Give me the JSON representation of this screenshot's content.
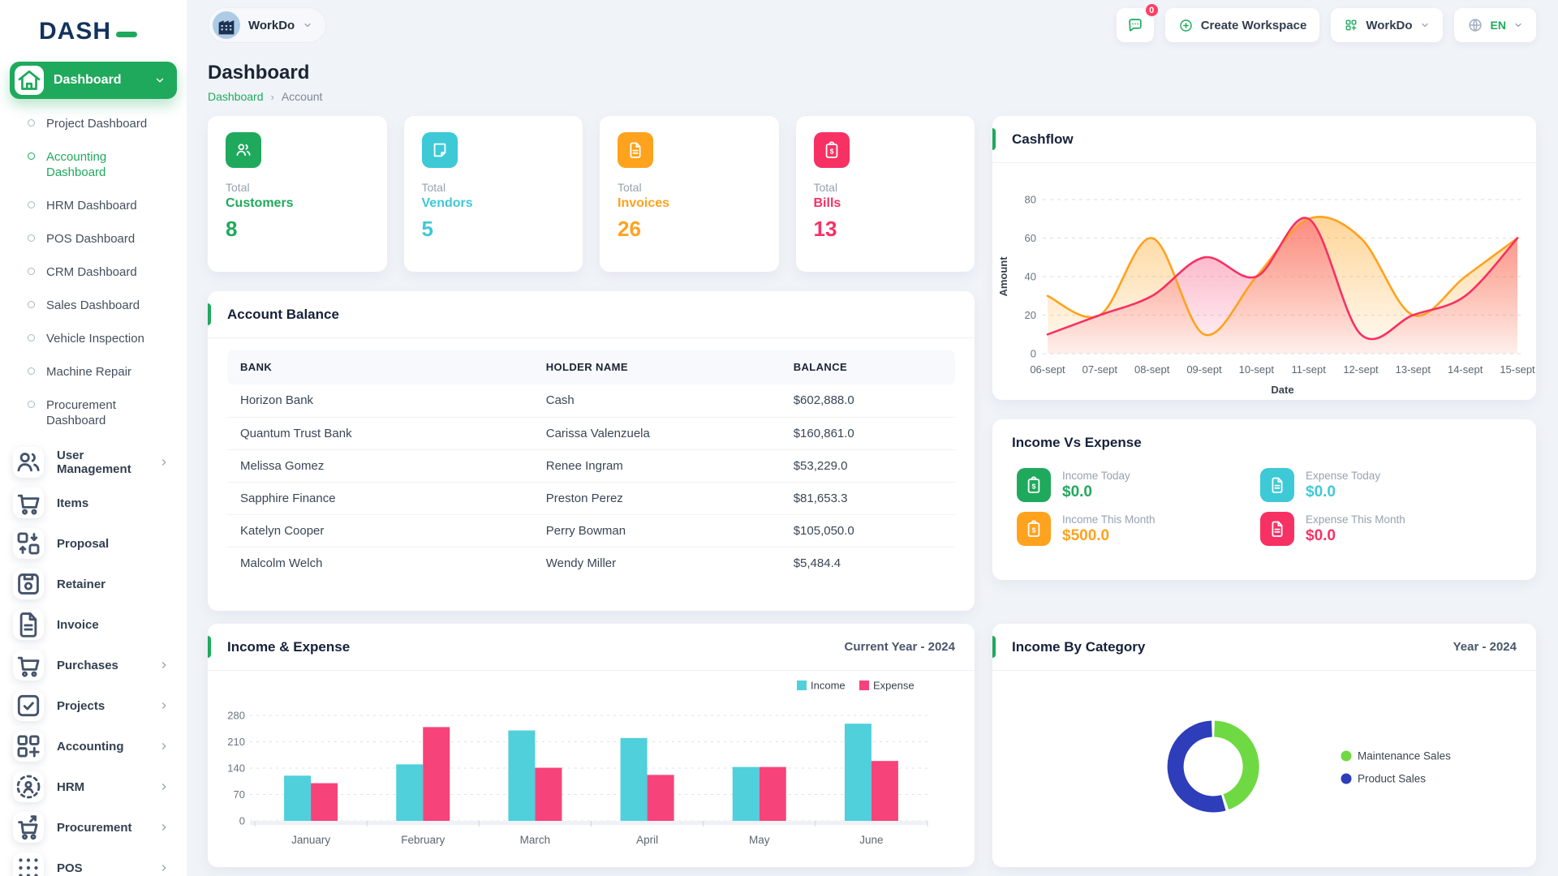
{
  "app": {
    "logo_text": "DASH"
  },
  "header": {
    "workspace_chip_label": "WorkDo",
    "notification_count": "0",
    "create_workspace_label": "Create Workspace",
    "workdo_label": "WorkDo",
    "language_label": "EN"
  },
  "page": {
    "title": "Dashboard",
    "breadcrumb_root": "Dashboard",
    "breadcrumb_sep": "›",
    "breadcrumb_current": "Account"
  },
  "sidebar": {
    "active_item": {
      "label": "Dashboard",
      "icon": "home-icon"
    },
    "dashboard_children": [
      {
        "label": "Project Dashboard",
        "active": false
      },
      {
        "label": "Accounting Dashboard",
        "active": true
      },
      {
        "label": "HRM Dashboard",
        "active": false
      },
      {
        "label": "POS Dashboard",
        "active": false
      },
      {
        "label": "CRM Dashboard",
        "active": false
      },
      {
        "label": "Sales Dashboard",
        "active": false
      },
      {
        "label": "Vehicle Inspection",
        "active": false
      },
      {
        "label": "Machine Repair",
        "active": false
      },
      {
        "label": "Procurement Dashboard",
        "active": false
      }
    ],
    "menu_items": [
      {
        "label": "User Management",
        "icon": "users-icon",
        "chevron": true
      },
      {
        "label": "Items",
        "icon": "cart-icon",
        "chevron": false
      },
      {
        "label": "Proposal",
        "icon": "workflow-icon",
        "chevron": false
      },
      {
        "label": "Retainer",
        "icon": "save-icon",
        "chevron": false
      },
      {
        "label": "Invoice",
        "icon": "file-text-icon",
        "chevron": false
      },
      {
        "label": "Purchases",
        "icon": "cart-icon",
        "chevron": true
      },
      {
        "label": "Projects",
        "icon": "check-square-icon",
        "chevron": true
      },
      {
        "label": "Accounting",
        "icon": "grid-plus-icon",
        "chevron": true
      },
      {
        "label": "HRM",
        "icon": "hrm-icon",
        "chevron": true
      },
      {
        "label": "Procurement",
        "icon": "procurement-cart-icon",
        "chevron": true
      },
      {
        "label": "POS",
        "icon": "pos-grid-icon",
        "chevron": true
      }
    ]
  },
  "stat_cards": [
    {
      "top": "Total",
      "name": "Customers",
      "value": "8",
      "color": "#1fa95c",
      "icon": "users-icon"
    },
    {
      "top": "Total",
      "name": "Vendors",
      "value": "5",
      "color": "#3ec9d6",
      "icon": "note-icon"
    },
    {
      "top": "Total",
      "name": "Invoices",
      "value": "26",
      "color": "#ffa21d",
      "icon": "file-text-icon"
    },
    {
      "top": "Total",
      "name": "Bills",
      "value": "13",
      "color": "#f73164",
      "icon": "clipboard-dollar-icon"
    }
  ],
  "account_balance": {
    "title": "Account Balance",
    "columns": [
      "BANK",
      "HOLDER NAME",
      "BALANCE"
    ],
    "rows": [
      [
        "Horizon Bank",
        "Cash",
        "$602,888.0"
      ],
      [
        "Quantum Trust Bank",
        "Carissa Valenzuela",
        "$160,861.0"
      ],
      [
        "Melissa Gomez",
        "Renee Ingram",
        "$53,229.0"
      ],
      [
        "Sapphire Finance",
        "Preston Perez",
        "$81,653.3"
      ],
      [
        "Katelyn Cooper",
        "Perry Bowman",
        "$105,050.0"
      ],
      [
        "Malcolm Welch",
        "Wendy Miller",
        "$5,484.4"
      ]
    ]
  },
  "income_vs_expense": {
    "title": "Income Vs Expense",
    "items": [
      {
        "label": "Income Today",
        "value": "$0.0",
        "color": "#1fa95c",
        "icon": "clipboard-dollar-icon"
      },
      {
        "label": "Expense Today",
        "value": "$0.0",
        "color": "#3ec9d6",
        "icon": "file-text-icon"
      },
      {
        "label": "Income This Month",
        "value": "$500.0",
        "color": "#ffa21d",
        "icon": "clipboard-dollar-icon"
      },
      {
        "label": "Expense This Month",
        "value": "$0.0",
        "color": "#f73164",
        "icon": "file-text-icon"
      }
    ]
  },
  "chart_data": [
    {
      "id": "cashflow",
      "type": "area",
      "title": "Cashflow",
      "xlabel": "Date",
      "ylabel": "Amount",
      "x": [
        "06-sept",
        "07-sept",
        "08-sept",
        "09-sept",
        "10-sept",
        "11-sept",
        "12-sept",
        "13-sept",
        "14-sept",
        "15-sept"
      ],
      "ylim": [
        0,
        80
      ],
      "yticks": [
        0,
        20,
        40,
        60,
        80
      ],
      "grid": true,
      "series": [
        {
          "color": "#ffa21d",
          "values": [
            30,
            20,
            60,
            10,
            40,
            70,
            60,
            20,
            40,
            60
          ]
        },
        {
          "color": "#f73164",
          "values": [
            10,
            20,
            30,
            50,
            40,
            70,
            10,
            20,
            30,
            60
          ]
        }
      ]
    },
    {
      "id": "income_expense",
      "type": "bar",
      "title": "Income & Expense",
      "subtitle": "Current Year - 2024",
      "categories": [
        "January",
        "February",
        "March",
        "April",
        "May",
        "June"
      ],
      "ylim": [
        0,
        280
      ],
      "yticks": [
        0,
        70,
        140,
        210,
        280
      ],
      "grid": true,
      "legend_position": "top-right",
      "series": [
        {
          "name": "Income",
          "color": "#4fd0db",
          "values": [
            120,
            150,
            240,
            220,
            143,
            258
          ]
        },
        {
          "name": "Expense",
          "color": "#f6437a",
          "values": [
            100,
            249,
            141,
            122,
            143,
            159
          ]
        }
      ]
    },
    {
      "id": "income_by_category",
      "type": "pie",
      "title": "Income By Category",
      "subtitle": "Year - 2024",
      "legend_position": "right",
      "slices": [
        {
          "label": "Maintenance Sales",
          "value": 45,
          "color": "#6fd943"
        },
        {
          "label": "Product Sales",
          "value": 55,
          "color": "#2e3db9"
        }
      ]
    }
  ]
}
